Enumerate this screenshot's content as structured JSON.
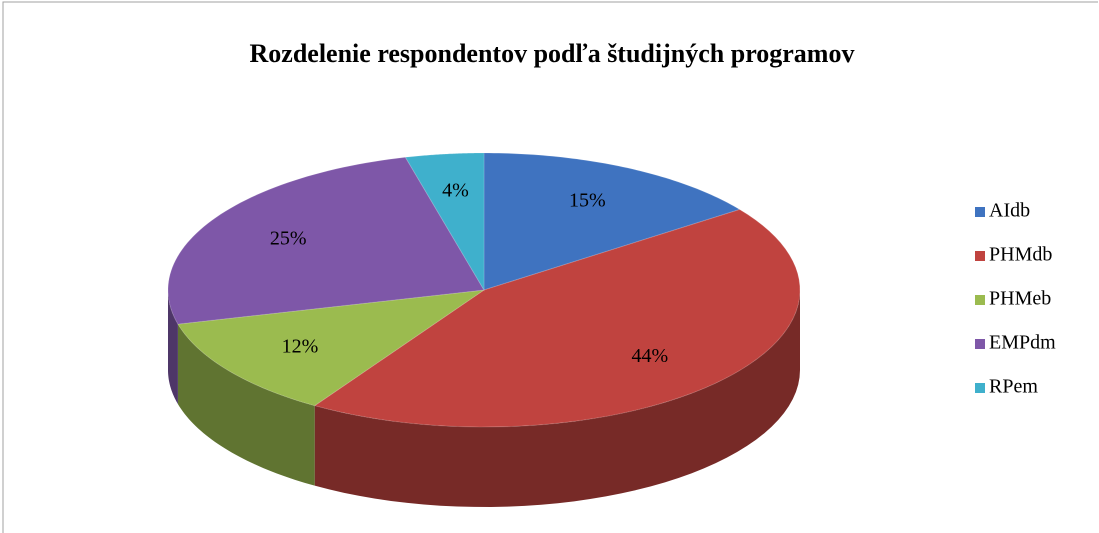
{
  "chart_data": {
    "type": "pie",
    "title": "Rozdelenie  respondentov podľa študijných programov",
    "categories": [
      "AIdb",
      "PHMdb",
      "PHMeb",
      "EMPdm",
      "RPem"
    ],
    "values": [
      15,
      44,
      12,
      25,
      4
    ],
    "value_labels": [
      "15%",
      "44%",
      "12%",
      "25%",
      "4%"
    ],
    "colors": [
      "#3f73c0",
      "#c0433f",
      "#9bbb4f",
      "#7e57a8",
      "#3fb0cc"
    ],
    "legend": "right"
  }
}
